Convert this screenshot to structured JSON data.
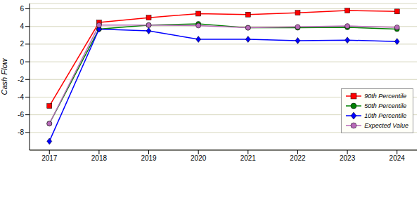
{
  "chart_data": {
    "type": "line",
    "y_label": "Cash Flow",
    "x": [
      2017,
      2018,
      2019,
      2020,
      2021,
      2022,
      2023,
      2024
    ],
    "xlim": [
      2016.6,
      2024.4
    ],
    "xticks": [
      2017,
      2018,
      2019,
      2020,
      2021,
      2022,
      2023,
      2024
    ],
    "ylim": [
      -10,
      6.6
    ],
    "yticks": [
      -8,
      -6,
      -4,
      -2,
      0,
      2,
      4,
      6
    ],
    "grid": true,
    "legend": "right",
    "series": [
      {
        "name": "90th Percentile",
        "color": "#ff0000",
        "marker": "square",
        "values": [
          -5,
          4.45,
          5.0,
          5.45,
          5.35,
          5.55,
          5.8,
          5.7
        ]
      },
      {
        "name": "50th Percentile",
        "color": "#008000",
        "marker": "circle",
        "values": [
          -7,
          3.7,
          4.15,
          4.3,
          3.85,
          3.85,
          3.9,
          3.7
        ]
      },
      {
        "name": "10th Percentile",
        "color": "#0000ff",
        "marker": "diamond",
        "values": [
          -9,
          3.7,
          3.5,
          2.55,
          2.55,
          2.4,
          2.45,
          2.3
        ]
      },
      {
        "name": "Expected Value",
        "color": "#b86ab8",
        "marker": "circle",
        "values": [
          -7,
          4.15,
          4.15,
          4.1,
          3.85,
          3.95,
          4.05,
          3.9
        ]
      }
    ]
  }
}
